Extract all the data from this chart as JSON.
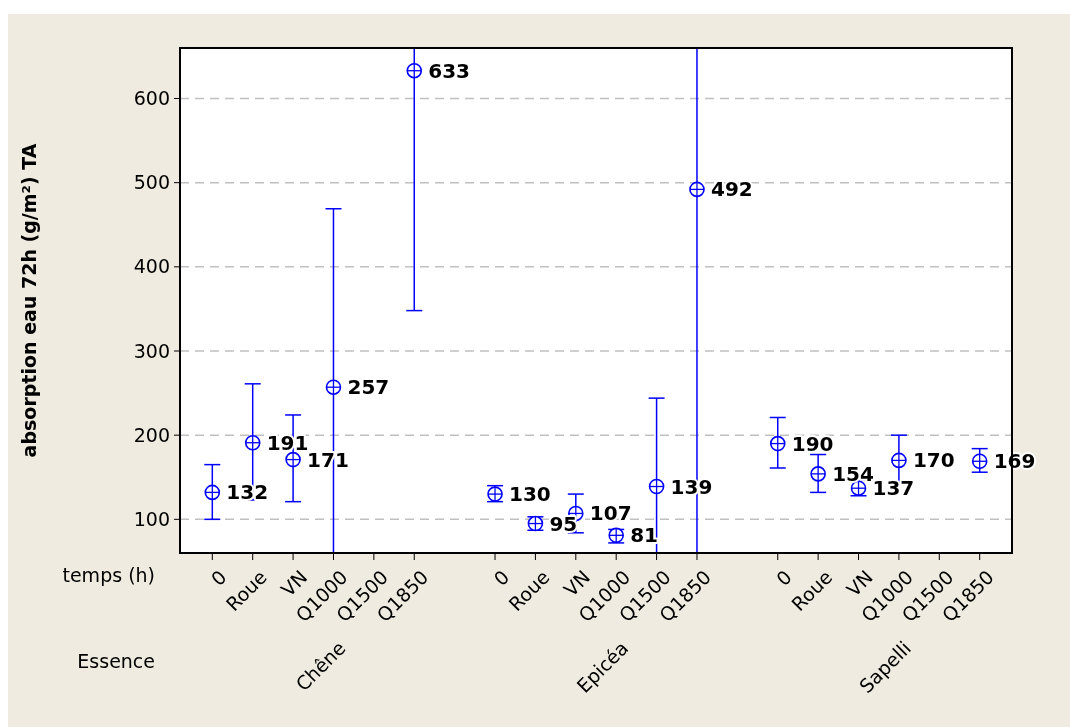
{
  "chart_data": {
    "type": "scatter",
    "ylabel": "absorption eau 72h (g/m²) TA",
    "categories": [
      "0",
      "Roue",
      "VN",
      "Q1000",
      "Q1500",
      "Q1850",
      null,
      "0",
      "Roue",
      "VN",
      "Q1000",
      "Q1500",
      "Q1850",
      null,
      "0",
      "Roue",
      "VN",
      "Q1000",
      "Q1500",
      "Q1850"
    ],
    "series": [
      {
        "color": "#0000ff",
        "values": [
          132,
          191,
          171,
          257,
          null,
          633,
          null,
          130,
          95,
          107,
          81,
          139,
          492,
          null,
          190,
          154,
          137,
          170,
          null,
          169
        ],
        "errors": [
          [
            100,
            165
          ],
          [
            123,
            261
          ],
          [
            121,
            224
          ],
          [
            60,
            469
          ],
          null,
          [
            348,
            660
          ],
          null,
          [
            121,
            140
          ],
          [
            87,
            103
          ],
          [
            84,
            130
          ],
          [
            72,
            88
          ],
          [
            60,
            244
          ],
          [
            60,
            660
          ],
          null,
          [
            161,
            221
          ],
          [
            132,
            177
          ],
          [
            128,
            147
          ],
          [
            142,
            200
          ],
          null,
          [
            156,
            184
          ]
        ]
      }
    ],
    "ylim": [
      60,
      660
    ],
    "yticks": [
      100,
      200,
      300,
      400,
      500,
      600
    ],
    "grid": "y",
    "marker": "circle",
    "data_labels": true,
    "annotations": [
      "temps (h)",
      "Essence",
      "Chêne",
      "Epicéa",
      "Sapelli"
    ]
  }
}
